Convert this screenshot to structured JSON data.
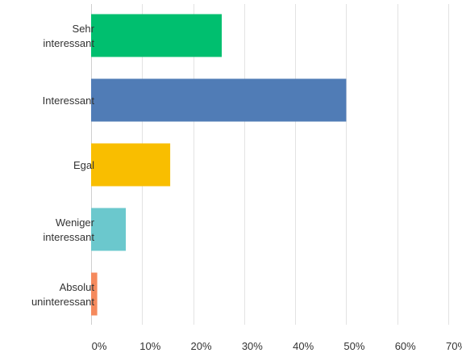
{
  "chart_data": {
    "type": "bar",
    "orientation": "horizontal",
    "categories": [
      [
        "Sehr",
        "interessant"
      ],
      [
        "Interessant"
      ],
      [
        "Egal"
      ],
      [
        "Weniger",
        "interessant"
      ],
      [
        "Absolut",
        "uninteressant"
      ]
    ],
    "values": [
      25.6,
      50.0,
      15.5,
      6.8,
      1.2
    ],
    "colors": [
      "#00bf6f",
      "#507cb6",
      "#f9be00",
      "#6bc8cd",
      "#f58a5d"
    ],
    "xlim": [
      0,
      70
    ],
    "x_ticks": [
      0,
      10,
      20,
      30,
      40,
      50,
      60,
      70
    ],
    "x_tick_labels": [
      "0%",
      "10%",
      "20%",
      "30%",
      "40%",
      "50%",
      "60%",
      "70%"
    ],
    "grid": true,
    "legend": "none"
  }
}
